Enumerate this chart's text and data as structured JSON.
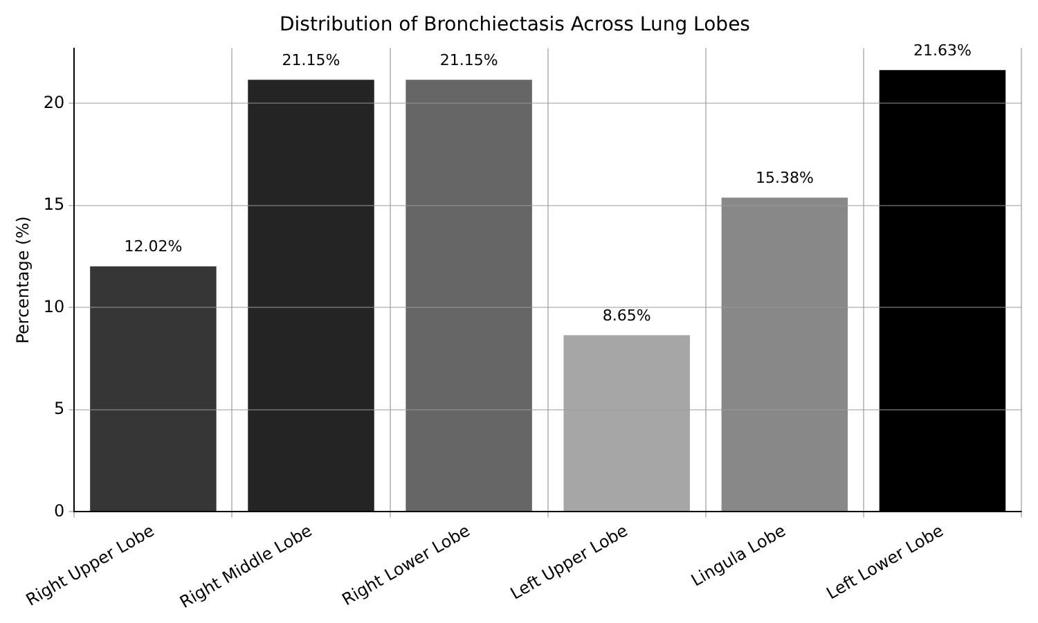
{
  "chart_data": {
    "type": "bar",
    "title": "Distribution of Bronchiectasis Across Lung Lobes",
    "ylabel": "Percentage (%)",
    "categories": [
      "Right Upper Lobe",
      "Right Middle Lobe",
      "Right Lower Lobe",
      "Left Upper Lobe",
      "Lingula Lobe",
      "Left Lower Lobe"
    ],
    "values": [
      12.02,
      21.15,
      21.15,
      8.65,
      15.38,
      21.63
    ],
    "colors": [
      "#363636",
      "#242424",
      "#666666",
      "#a6a6a6",
      "#888888",
      "#000000"
    ],
    "value_labels": [
      "12.02%",
      "21.15%",
      "21.15%",
      "8.65%",
      "15.38%",
      "21.63%"
    ],
    "ylim": [
      0,
      22.7
    ],
    "yticks": [
      0,
      5,
      10,
      15,
      20
    ],
    "grid": true,
    "legend": false
  }
}
